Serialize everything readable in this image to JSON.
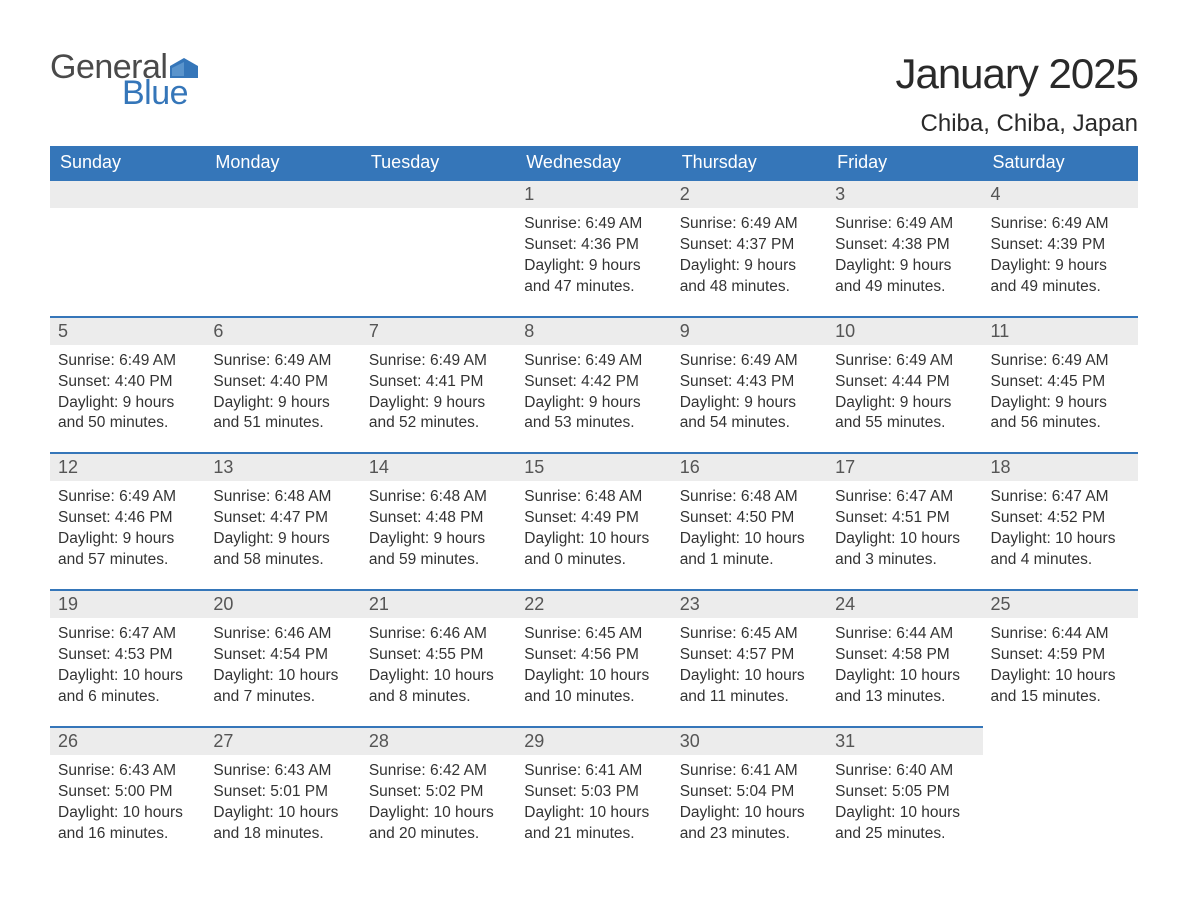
{
  "logo": {
    "text_general": "General",
    "text_blue": "Blue",
    "flag_color": "#3576b9"
  },
  "title": "January 2025",
  "location": "Chiba, Chiba, Japan",
  "colors": {
    "header_bg": "#3576b9",
    "header_text": "#ffffff",
    "daynum_bg": "#ececec",
    "daynum_border": "#3576b9",
    "body_text": "#333333",
    "page_bg": "#ffffff"
  },
  "day_names": [
    "Sunday",
    "Monday",
    "Tuesday",
    "Wednesday",
    "Thursday",
    "Friday",
    "Saturday"
  ],
  "weeks": [
    [
      {
        "num": "",
        "sunrise": "",
        "sunset": "",
        "daylight": ""
      },
      {
        "num": "",
        "sunrise": "",
        "sunset": "",
        "daylight": ""
      },
      {
        "num": "",
        "sunrise": "",
        "sunset": "",
        "daylight": ""
      },
      {
        "num": "1",
        "sunrise": "Sunrise: 6:49 AM",
        "sunset": "Sunset: 4:36 PM",
        "daylight": "Daylight: 9 hours and 47 minutes."
      },
      {
        "num": "2",
        "sunrise": "Sunrise: 6:49 AM",
        "sunset": "Sunset: 4:37 PM",
        "daylight": "Daylight: 9 hours and 48 minutes."
      },
      {
        "num": "3",
        "sunrise": "Sunrise: 6:49 AM",
        "sunset": "Sunset: 4:38 PM",
        "daylight": "Daylight: 9 hours and 49 minutes."
      },
      {
        "num": "4",
        "sunrise": "Sunrise: 6:49 AM",
        "sunset": "Sunset: 4:39 PM",
        "daylight": "Daylight: 9 hours and 49 minutes."
      }
    ],
    [
      {
        "num": "5",
        "sunrise": "Sunrise: 6:49 AM",
        "sunset": "Sunset: 4:40 PM",
        "daylight": "Daylight: 9 hours and 50 minutes."
      },
      {
        "num": "6",
        "sunrise": "Sunrise: 6:49 AM",
        "sunset": "Sunset: 4:40 PM",
        "daylight": "Daylight: 9 hours and 51 minutes."
      },
      {
        "num": "7",
        "sunrise": "Sunrise: 6:49 AM",
        "sunset": "Sunset: 4:41 PM",
        "daylight": "Daylight: 9 hours and 52 minutes."
      },
      {
        "num": "8",
        "sunrise": "Sunrise: 6:49 AM",
        "sunset": "Sunset: 4:42 PM",
        "daylight": "Daylight: 9 hours and 53 minutes."
      },
      {
        "num": "9",
        "sunrise": "Sunrise: 6:49 AM",
        "sunset": "Sunset: 4:43 PM",
        "daylight": "Daylight: 9 hours and 54 minutes."
      },
      {
        "num": "10",
        "sunrise": "Sunrise: 6:49 AM",
        "sunset": "Sunset: 4:44 PM",
        "daylight": "Daylight: 9 hours and 55 minutes."
      },
      {
        "num": "11",
        "sunrise": "Sunrise: 6:49 AM",
        "sunset": "Sunset: 4:45 PM",
        "daylight": "Daylight: 9 hours and 56 minutes."
      }
    ],
    [
      {
        "num": "12",
        "sunrise": "Sunrise: 6:49 AM",
        "sunset": "Sunset: 4:46 PM",
        "daylight": "Daylight: 9 hours and 57 minutes."
      },
      {
        "num": "13",
        "sunrise": "Sunrise: 6:48 AM",
        "sunset": "Sunset: 4:47 PM",
        "daylight": "Daylight: 9 hours and 58 minutes."
      },
      {
        "num": "14",
        "sunrise": "Sunrise: 6:48 AM",
        "sunset": "Sunset: 4:48 PM",
        "daylight": "Daylight: 9 hours and 59 minutes."
      },
      {
        "num": "15",
        "sunrise": "Sunrise: 6:48 AM",
        "sunset": "Sunset: 4:49 PM",
        "daylight": "Daylight: 10 hours and 0 minutes."
      },
      {
        "num": "16",
        "sunrise": "Sunrise: 6:48 AM",
        "sunset": "Sunset: 4:50 PM",
        "daylight": "Daylight: 10 hours and 1 minute."
      },
      {
        "num": "17",
        "sunrise": "Sunrise: 6:47 AM",
        "sunset": "Sunset: 4:51 PM",
        "daylight": "Daylight: 10 hours and 3 minutes."
      },
      {
        "num": "18",
        "sunrise": "Sunrise: 6:47 AM",
        "sunset": "Sunset: 4:52 PM",
        "daylight": "Daylight: 10 hours and 4 minutes."
      }
    ],
    [
      {
        "num": "19",
        "sunrise": "Sunrise: 6:47 AM",
        "sunset": "Sunset: 4:53 PM",
        "daylight": "Daylight: 10 hours and 6 minutes."
      },
      {
        "num": "20",
        "sunrise": "Sunrise: 6:46 AM",
        "sunset": "Sunset: 4:54 PM",
        "daylight": "Daylight: 10 hours and 7 minutes."
      },
      {
        "num": "21",
        "sunrise": "Sunrise: 6:46 AM",
        "sunset": "Sunset: 4:55 PM",
        "daylight": "Daylight: 10 hours and 8 minutes."
      },
      {
        "num": "22",
        "sunrise": "Sunrise: 6:45 AM",
        "sunset": "Sunset: 4:56 PM",
        "daylight": "Daylight: 10 hours and 10 minutes."
      },
      {
        "num": "23",
        "sunrise": "Sunrise: 6:45 AM",
        "sunset": "Sunset: 4:57 PM",
        "daylight": "Daylight: 10 hours and 11 minutes."
      },
      {
        "num": "24",
        "sunrise": "Sunrise: 6:44 AM",
        "sunset": "Sunset: 4:58 PM",
        "daylight": "Daylight: 10 hours and 13 minutes."
      },
      {
        "num": "25",
        "sunrise": "Sunrise: 6:44 AM",
        "sunset": "Sunset: 4:59 PM",
        "daylight": "Daylight: 10 hours and 15 minutes."
      }
    ],
    [
      {
        "num": "26",
        "sunrise": "Sunrise: 6:43 AM",
        "sunset": "Sunset: 5:00 PM",
        "daylight": "Daylight: 10 hours and 16 minutes."
      },
      {
        "num": "27",
        "sunrise": "Sunrise: 6:43 AM",
        "sunset": "Sunset: 5:01 PM",
        "daylight": "Daylight: 10 hours and 18 minutes."
      },
      {
        "num": "28",
        "sunrise": "Sunrise: 6:42 AM",
        "sunset": "Sunset: 5:02 PM",
        "daylight": "Daylight: 10 hours and 20 minutes."
      },
      {
        "num": "29",
        "sunrise": "Sunrise: 6:41 AM",
        "sunset": "Sunset: 5:03 PM",
        "daylight": "Daylight: 10 hours and 21 minutes."
      },
      {
        "num": "30",
        "sunrise": "Sunrise: 6:41 AM",
        "sunset": "Sunset: 5:04 PM",
        "daylight": "Daylight: 10 hours and 23 minutes."
      },
      {
        "num": "31",
        "sunrise": "Sunrise: 6:40 AM",
        "sunset": "Sunset: 5:05 PM",
        "daylight": "Daylight: 10 hours and 25 minutes."
      },
      {
        "num": "",
        "sunrise": "",
        "sunset": "",
        "daylight": ""
      }
    ]
  ]
}
